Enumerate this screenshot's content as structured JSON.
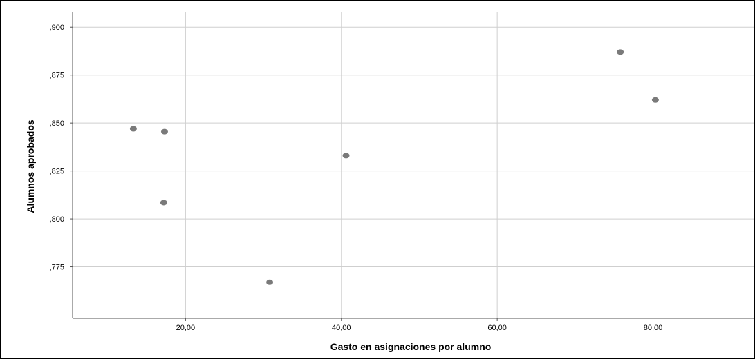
{
  "chart_data": {
    "type": "scatter",
    "title": "",
    "xlabel": "Gasto en asignaciones por alumno",
    "ylabel": "Alumnos aprobados",
    "xlim": [
      5.5,
      93
    ],
    "ylim": [
      0.7482,
      0.908
    ],
    "grid": true,
    "x_ticks": [
      20,
      40,
      60,
      80
    ],
    "x_tick_labels": [
      "20,00",
      "40,00",
      "60,00",
      "80,00"
    ],
    "y_ticks": [
      0.9,
      0.875,
      0.85,
      0.825,
      0.8,
      0.775
    ],
    "y_tick_labels": [
      ",900",
      ",875",
      ",850",
      ",825",
      ",800",
      ",775"
    ],
    "points": [
      {
        "x": 13.3,
        "y": 0.847
      },
      {
        "x": 17.3,
        "y": 0.8455
      },
      {
        "x": 17.2,
        "y": 0.8085
      },
      {
        "x": 30.8,
        "y": 0.767
      },
      {
        "x": 40.6,
        "y": 0.833
      },
      {
        "x": 75.8,
        "y": 0.887
      },
      {
        "x": 80.3,
        "y": 0.862
      }
    ],
    "colors": {
      "point": "#7a7a7a",
      "grid": "#cfcfcf",
      "axis": "#555555"
    }
  }
}
